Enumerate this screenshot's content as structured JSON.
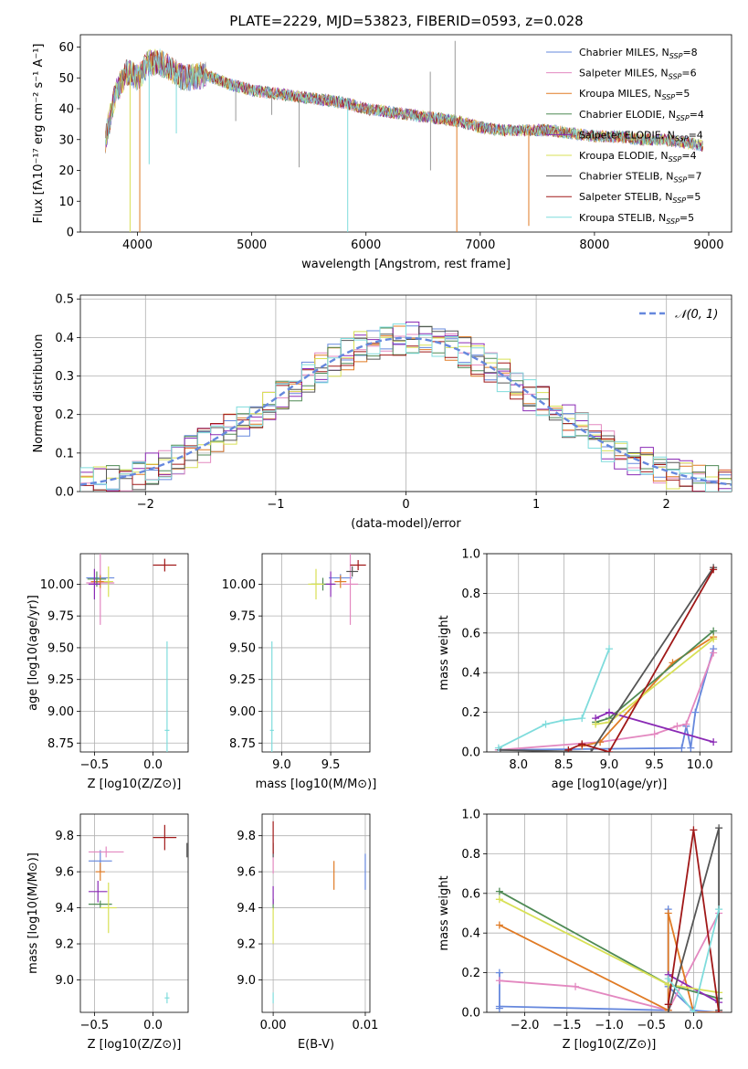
{
  "title": "PLATE=2229, MJD=53823, FIBERID=0593, z=0.028",
  "models": [
    {
      "name": "Chabrier MILES",
      "nssp": "8",
      "color": "#6688dd"
    },
    {
      "name": "Salpeter MILES",
      "nssp": "6",
      "color": "#e388c0"
    },
    {
      "name": "Kroupa MILES",
      "nssp": "5",
      "color": "#e07b25"
    },
    {
      "name": "Chabrier ELODIE",
      "nssp": "4",
      "color": "#4f8a55"
    },
    {
      "name": "Salpeter ELODIE",
      "nssp": "4",
      "color": "#8a2ab5"
    },
    {
      "name": "Kroupa ELODIE",
      "nssp": "4",
      "color": "#d8e055"
    },
    {
      "name": "Chabrier STELIB",
      "nssp": "7",
      "color": "#555555"
    },
    {
      "name": "Salpeter STELIB",
      "nssp": "5",
      "color": "#a01818"
    },
    {
      "name": "Kroupa STELIB",
      "nssp": "5",
      "color": "#7fdcdc"
    }
  ],
  "chart_data": [
    {
      "type": "line",
      "id": "spectrum",
      "xlabel": "wavelength [Angstrom, rest frame]",
      "ylabel": "Flux [fλ10⁻¹⁷ erg cm⁻² s⁻¹ A⁻¹]",
      "xlim": [
        3500,
        9200
      ],
      "ylim": [
        0,
        64
      ],
      "xticks": [
        4000,
        5000,
        6000,
        7000,
        8000,
        9000
      ],
      "yticks": [
        0,
        10,
        20,
        30,
        40,
        50,
        60
      ],
      "legend": "top-right",
      "continuum": {
        "x": [
          3720,
          3800,
          3900,
          4000,
          4100,
          4200,
          4400,
          4600,
          4800,
          5000,
          5200,
          5400,
          5600,
          5800,
          6000,
          6200,
          6400,
          6600,
          6800,
          7000,
          7200,
          7400,
          7600,
          7800,
          8000,
          8200,
          8400,
          8600,
          8800,
          8950
        ],
        "y": [
          30,
          44,
          52,
          50,
          55,
          55,
          50,
          51,
          48,
          46,
          45,
          44,
          43,
          42,
          40,
          39,
          38,
          37,
          36,
          34,
          33,
          33,
          33,
          32,
          31,
          31,
          30,
          30,
          29,
          28
        ]
      },
      "features": [
        {
          "x": 3935,
          "y": 0,
          "model": 5
        },
        {
          "x": 4020,
          "y": 0,
          "model": 2
        },
        {
          "x": 4102,
          "y": 22,
          "model": 8
        },
        {
          "x": 4340,
          "y": 32,
          "model": 8
        },
        {
          "x": 4860,
          "y": 36,
          "model": 6
        },
        {
          "x": 5175,
          "y": 38,
          "model": 6
        },
        {
          "x": 5415,
          "y": 21,
          "model": 6
        },
        {
          "x": 5840,
          "y": 0,
          "model": 8
        },
        {
          "x": 6565,
          "y": 20,
          "model": 6
        },
        {
          "x": 6563,
          "y": 52,
          "model": 6
        },
        {
          "x": 6795,
          "y": 0,
          "model": 2
        },
        {
          "x": 6780,
          "y": 62,
          "model": 6
        },
        {
          "x": 7425,
          "y": 2,
          "model": 2
        }
      ]
    },
    {
      "type": "line",
      "id": "residuals",
      "xlabel": "(data-model)/error",
      "ylabel": "Normed distribution",
      "xlim": [
        -2.5,
        2.5
      ],
      "ylim": [
        0,
        0.51
      ],
      "xticks": [
        -2,
        -1,
        0,
        1,
        2
      ],
      "yticks": [
        0.0,
        0.1,
        0.2,
        0.3,
        0.4,
        0.5
      ],
      "legend": "top-right",
      "reference": {
        "name": "𝒩(0, 1)",
        "mean": 0,
        "sigma": 1
      }
    },
    {
      "type": "scatter",
      "id": "age-vs-Z",
      "xlabel": "Z [log10(Z/Z⊙)]",
      "ylabel": "age  [log10(age/yr)]",
      "xlim": [
        -0.62,
        0.3
      ],
      "ylim": [
        8.68,
        10.24
      ],
      "xticks": [
        -0.5,
        0.0
      ],
      "yticks": [
        8.75,
        9.0,
        9.25,
        9.5,
        9.75,
        10.0
      ],
      "points": [
        {
          "model": 0,
          "x": -0.45,
          "y": 10.05,
          "xerr": 0.12,
          "yerr": 0.03
        },
        {
          "model": 1,
          "x": -0.45,
          "y": 10.01,
          "xerr": 0.12,
          "yerr": 0.33
        },
        {
          "model": 2,
          "x": -0.45,
          "y": 10.02,
          "xerr": 0.08,
          "yerr": 0.05
        },
        {
          "model": 3,
          "x": -0.48,
          "y": 10.04,
          "xerr": 0.08,
          "yerr": 0.06
        },
        {
          "model": 4,
          "x": -0.5,
          "y": 10.0,
          "xerr": 0.05,
          "yerr": 0.12
        },
        {
          "model": 5,
          "x": -0.38,
          "y": 10.02,
          "xerr": 0.04,
          "yerr": 0.12
        },
        {
          "model": 6,
          "x": 0.3,
          "y": 10.1,
          "xerr": 0.0,
          "yerr": 0.03
        },
        {
          "model": 7,
          "x": 0.1,
          "y": 10.15,
          "xerr": 0.1,
          "yerr": 0.05
        },
        {
          "model": 8,
          "x": 0.12,
          "y": 8.85,
          "xerr": 0.02,
          "yerr": 0.7
        }
      ]
    },
    {
      "type": "scatter",
      "id": "age-vs-mass",
      "xlabel": "mass [log10(M/M⊙)]",
      "ylabel": "",
      "xlim": [
        8.8,
        9.9
      ],
      "ylim": [
        8.68,
        10.24
      ],
      "xticks": [
        9.0,
        9.5
      ],
      "yticks": [
        8.75,
        9.0,
        9.25,
        9.5,
        9.75,
        10.0
      ],
      "points": [
        {
          "model": 0,
          "x": 9.6,
          "y": 10.05,
          "xerr": 0.12,
          "yerr": 0.03
        },
        {
          "model": 1,
          "x": 9.7,
          "y": 10.0,
          "xerr": 0.08,
          "yerr": 0.32
        },
        {
          "model": 2,
          "x": 9.6,
          "y": 10.02,
          "xerr": 0.06,
          "yerr": 0.05
        },
        {
          "model": 3,
          "x": 9.42,
          "y": 10.0,
          "xerr": 0.12,
          "yerr": 0.05
        },
        {
          "model": 4,
          "x": 9.5,
          "y": 10.0,
          "xerr": 0.05,
          "yerr": 0.1
        },
        {
          "model": 5,
          "x": 9.35,
          "y": 10.0,
          "xerr": 0.08,
          "yerr": 0.12
        },
        {
          "model": 6,
          "x": 9.72,
          "y": 10.1,
          "xerr": 0.06,
          "yerr": 0.04
        },
        {
          "model": 7,
          "x": 9.78,
          "y": 10.15,
          "xerr": 0.08,
          "yerr": 0.04
        },
        {
          "model": 8,
          "x": 8.9,
          "y": 8.85,
          "xerr": 0.02,
          "yerr": 0.7
        }
      ]
    },
    {
      "type": "line",
      "id": "weight-vs-age",
      "xlabel": "age  [log10(age/yr)]",
      "ylabel": "mass weight",
      "xlim": [
        7.65,
        10.35
      ],
      "ylim": [
        0,
        1.0
      ],
      "xticks": [
        8.0,
        8.5,
        9.0,
        9.5,
        10.0
      ],
      "yticks": [
        0.0,
        0.2,
        0.4,
        0.6,
        0.8,
        1.0
      ],
      "series": [
        {
          "model": 0,
          "x": [
            7.78,
            9.8,
            9.85,
            9.9,
            9.95,
            10.15
          ],
          "y": [
            0.01,
            0.02,
            0.13,
            0.02,
            0.2,
            0.52
          ]
        },
        {
          "model": 1,
          "x": [
            7.78,
            8.9,
            9.5,
            9.75,
            9.85,
            10.15
          ],
          "y": [
            0.01,
            0.05,
            0.09,
            0.13,
            0.14,
            0.5
          ]
        },
        {
          "model": 2,
          "x": [
            8.7,
            8.9,
            9.7,
            10.15
          ],
          "y": [
            0.03,
            0.05,
            0.45,
            0.58
          ]
        },
        {
          "model": 3,
          "x": [
            8.85,
            9.0,
            10.15
          ],
          "y": [
            0.15,
            0.17,
            0.61
          ]
        },
        {
          "model": 4,
          "x": [
            8.85,
            9.0,
            10.15
          ],
          "y": [
            0.17,
            0.2,
            0.05
          ]
        },
        {
          "model": 5,
          "x": [
            8.85,
            9.0,
            10.15
          ],
          "y": [
            0.14,
            0.15,
            0.57
          ]
        },
        {
          "model": 6,
          "x": [
            7.8,
            8.8,
            10.15
          ],
          "y": [
            0.01,
            0.0,
            0.93
          ]
        },
        {
          "model": 7,
          "x": [
            8.55,
            8.7,
            9.0,
            10.15
          ],
          "y": [
            0.01,
            0.04,
            0.0,
            0.92
          ]
        },
        {
          "model": 8,
          "x": [
            7.78,
            8.3,
            8.5,
            8.7,
            9.0
          ],
          "y": [
            0.02,
            0.14,
            0.16,
            0.17,
            0.52
          ]
        }
      ]
    },
    {
      "type": "scatter",
      "id": "mass-vs-Z",
      "xlabel": "Z [log10(Z/Z⊙)]",
      "ylabel": "mass [log10(M/M⊙)]",
      "xlim": [
        -0.62,
        0.3
      ],
      "ylim": [
        8.82,
        9.92
      ],
      "xticks": [
        -0.5,
        0.0
      ],
      "yticks": [
        9.0,
        9.2,
        9.4,
        9.6,
        9.8
      ],
      "points": [
        {
          "model": 0,
          "x": -0.45,
          "y": 9.66,
          "xerr": 0.1,
          "yerr": 0.06
        },
        {
          "model": 1,
          "x": -0.4,
          "y": 9.71,
          "xerr": 0.15,
          "yerr": 0.03
        },
        {
          "model": 2,
          "x": -0.45,
          "y": 9.6,
          "xerr": 0.04,
          "yerr": 0.05
        },
        {
          "model": 3,
          "x": -0.45,
          "y": 9.42,
          "xerr": 0.1,
          "yerr": 0.02
        },
        {
          "model": 4,
          "x": -0.47,
          "y": 9.49,
          "xerr": 0.08,
          "yerr": 0.06
        },
        {
          "model": 5,
          "x": -0.38,
          "y": 9.4,
          "xerr": 0.07,
          "yerr": 0.14
        },
        {
          "model": 6,
          "x": 0.29,
          "y": 9.72,
          "xerr": 0.0,
          "yerr": 0.04
        },
        {
          "model": 7,
          "x": 0.1,
          "y": 9.79,
          "xerr": 0.1,
          "yerr": 0.07
        },
        {
          "model": 8,
          "x": 0.12,
          "y": 8.9,
          "xerr": 0.02,
          "yerr": 0.03
        }
      ]
    },
    {
      "type": "scatter",
      "id": "mass-vs-EBV",
      "xlabel": "E(B-V)",
      "ylabel": "",
      "xlim": [
        -0.0012,
        0.0105
      ],
      "ylim": [
        8.82,
        9.92
      ],
      "xticks": [
        0.0,
        0.01
      ],
      "xticklabels": [
        "0.00",
        "0.01"
      ],
      "yticks": [
        9.0,
        9.2,
        9.4,
        9.6,
        9.8
      ],
      "points": [
        {
          "model": 0,
          "x": 0.01,
          "y": 9.6,
          "xerr": 0,
          "yerr": 0.1
        },
        {
          "model": 1,
          "x": 0.0,
          "y": 9.65,
          "xerr": 0,
          "yerr": 0.06
        },
        {
          "model": 2,
          "x": 0.0066,
          "y": 9.58,
          "xerr": 0,
          "yerr": 0.08
        },
        {
          "model": 3,
          "x": 0.0,
          "y": 9.42,
          "xerr": 0,
          "yerr": 0.03
        },
        {
          "model": 4,
          "x": 0.0,
          "y": 9.47,
          "xerr": 0,
          "yerr": 0.05
        },
        {
          "model": 5,
          "x": 0.0,
          "y": 9.3,
          "xerr": 0,
          "yerr": 0.1
        },
        {
          "model": 6,
          "x": 0.0,
          "y": 9.72,
          "xerr": 0,
          "yerr": 0.04
        },
        {
          "model": 7,
          "x": 0.0,
          "y": 9.79,
          "xerr": 0,
          "yerr": 0.09
        },
        {
          "model": 8,
          "x": 0.0,
          "y": 8.9,
          "xerr": 0,
          "yerr": 0.03
        }
      ]
    },
    {
      "type": "line",
      "id": "weight-vs-Z",
      "xlabel": "Z [log10(Z/Z⊙)]",
      "ylabel": "mass weight",
      "xlim": [
        -2.45,
        0.45
      ],
      "ylim": [
        0,
        1.0
      ],
      "xticks": [
        -2.0,
        -1.5,
        -1.0,
        -0.5,
        0.0
      ],
      "yticks": [
        0.0,
        0.2,
        0.4,
        0.6,
        0.8,
        1.0
      ],
      "series": [
        {
          "model": 0,
          "x": [
            -2.3,
            -2.3,
            -2.3,
            -0.3,
            -0.3,
            -0.3,
            0.0,
            0.3
          ],
          "y": [
            0.2,
            0.02,
            0.03,
            0.01,
            0.52,
            0.13,
            0.01,
            0.0
          ]
        },
        {
          "model": 1,
          "x": [
            -2.3,
            -1.4,
            -0.3,
            0.3
          ],
          "y": [
            0.16,
            0.13,
            0.01,
            0.5
          ]
        },
        {
          "model": 2,
          "x": [
            -2.3,
            -0.3,
            -0.3,
            0.0,
            0.3
          ],
          "y": [
            0.44,
            0.01,
            0.5,
            0.0,
            0.0
          ]
        },
        {
          "model": 3,
          "x": [
            -2.3,
            -0.3,
            0.3
          ],
          "y": [
            0.61,
            0.14,
            0.07
          ]
        },
        {
          "model": 4,
          "x": [
            -0.3,
            0.3
          ],
          "y": [
            0.19,
            0.05
          ]
        },
        {
          "model": 5,
          "x": [
            -2.3,
            -0.3,
            0.3
          ],
          "y": [
            0.57,
            0.14,
            0.1
          ]
        },
        {
          "model": 6,
          "x": [
            -0.3,
            0.3,
            0.3
          ],
          "y": [
            0.0,
            0.93,
            0.01
          ]
        },
        {
          "model": 7,
          "x": [
            -0.3,
            0.0,
            0.3
          ],
          "y": [
            0.04,
            0.92,
            0.0
          ]
        },
        {
          "model": 8,
          "x": [
            -0.3,
            0.0,
            0.3
          ],
          "y": [
            0.17,
            0.0,
            0.52
          ]
        }
      ]
    }
  ]
}
